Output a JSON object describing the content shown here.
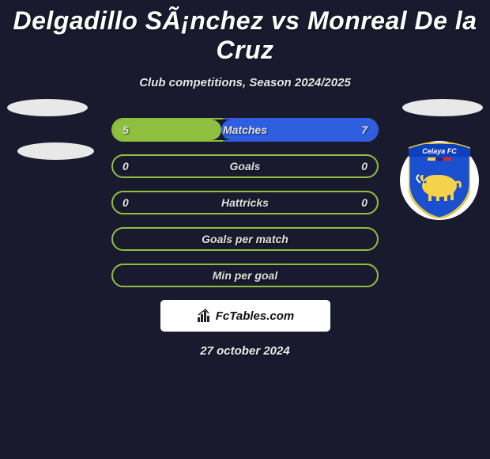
{
  "title": "Delgadillo SÃ¡nchez vs Monreal De la Cruz",
  "subtitle": "Club competitions, Season 2024/2025",
  "colors": {
    "background": "#1a1a2e",
    "row_border_left": "#8fbf3f",
    "row_border_right": "#2f5fe0",
    "fill_left": "#8fbf3f",
    "fill_right": "#2f5fe0",
    "crest_shield_primary": "#1a4fcf",
    "crest_shield_border": "#e6c84b",
    "crest_yellow": "#f4d24a",
    "attr_logo": "#222222"
  },
  "rows": [
    {
      "label": "Matches",
      "left": "5",
      "right": "7",
      "fill_left_pct": 41,
      "fill_right_pct": 59,
      "has_values": true
    },
    {
      "label": "Goals",
      "left": "0",
      "right": "0",
      "fill_left_pct": 0,
      "fill_right_pct": 0,
      "has_values": true
    },
    {
      "label": "Hattricks",
      "left": "0",
      "right": "0",
      "fill_left_pct": 0,
      "fill_right_pct": 0,
      "has_values": true
    },
    {
      "label": "Goals per match",
      "left": "",
      "right": "",
      "fill_left_pct": 0,
      "fill_right_pct": 0,
      "has_values": false
    },
    {
      "label": "Min per goal",
      "left": "",
      "right": "",
      "fill_left_pct": 0,
      "fill_right_pct": 0,
      "has_values": false
    }
  ],
  "attribution": "FcTables.com",
  "date": "27 october 2024",
  "crest_text": "Celaya FC"
}
